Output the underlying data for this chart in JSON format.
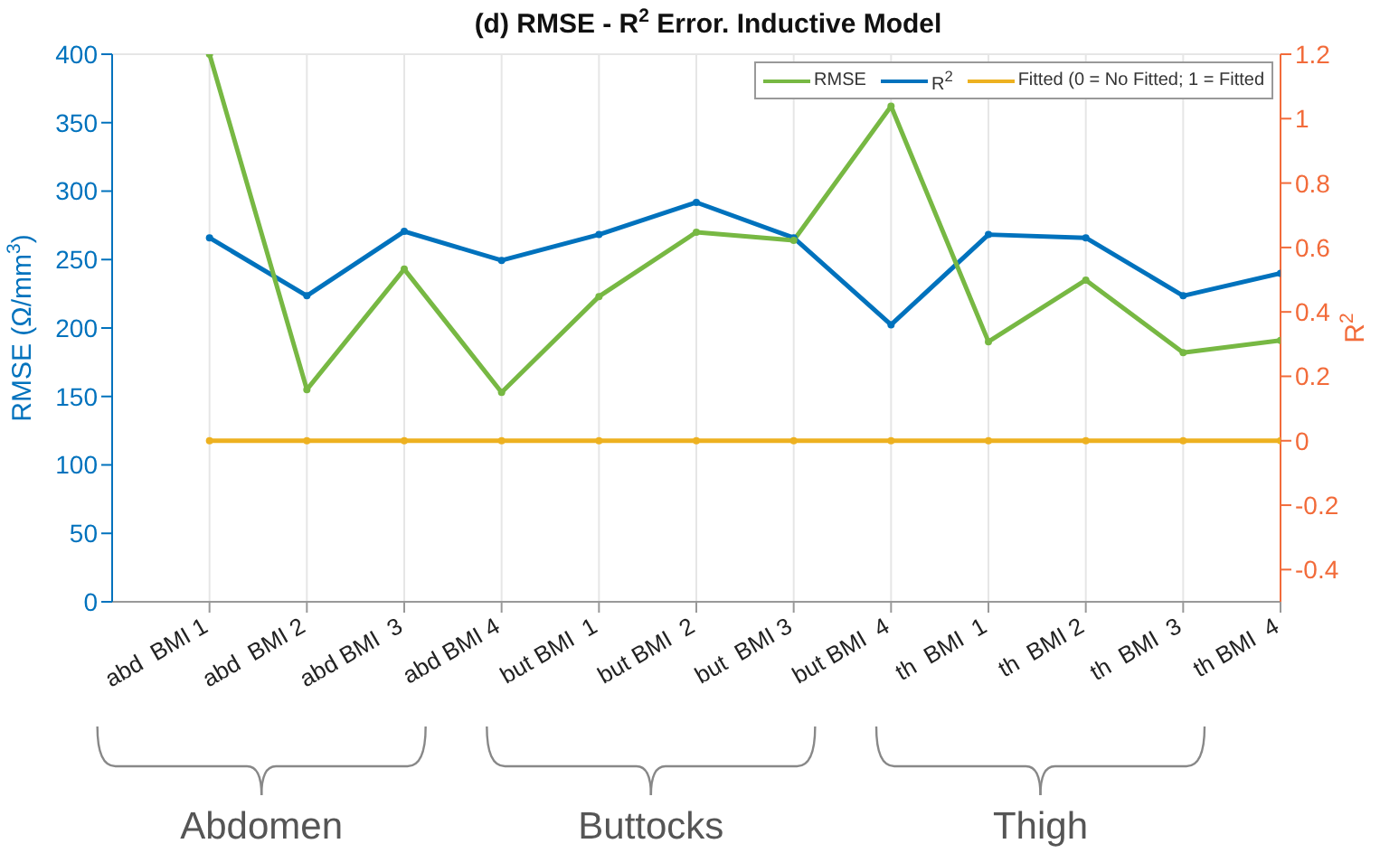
{
  "chart_data": {
    "type": "line",
    "title": "(d) RMSE - R$^{2}$ Error. Inductive Model",
    "ylabel": "RMSE (Ω/mm$^{3}$)",
    "y2label": "R$^{2}$",
    "categories": [
      "abd  BMI 1",
      "abd  BMI 2",
      "abd BMI  3",
      "abd BMI 4",
      "but BMI  1",
      "but BMI  2",
      "but  BMI 3",
      "but BMI  4",
      "th  BMI  1",
      "th  BMI 2",
      "th  BMI  3",
      "th BMI  4"
    ],
    "series": [
      {
        "name": "RMSE",
        "color": "#77b843",
        "values": [
          400,
          155,
          243,
          153,
          223,
          270,
          264,
          362,
          190,
          235,
          182,
          191
        ]
      },
      {
        "name": "R$^{2}$",
        "color": "#0072bd",
        "axis": "y2",
        "values": [
          0.63,
          0.45,
          0.65,
          0.56,
          0.64,
          0.74,
          0.63,
          0.36,
          0.64,
          0.63,
          0.45,
          0.52
        ]
      },
      {
        "name": "Fitted (0 = No Fitted; 1 = Fitted",
        "color": "#edb120",
        "axis": "y2",
        "values": [
          0,
          0,
          0,
          0,
          0,
          0,
          0,
          0,
          0,
          0,
          0,
          0
        ]
      }
    ],
    "ylim": [
      0,
      400
    ],
    "yticks": [
      0,
      50,
      100,
      150,
      200,
      250,
      300,
      350,
      400
    ],
    "y2lim": [
      -0.5,
      1.2
    ],
    "y2ticks": [
      -0.4,
      -0.2,
      0,
      0.2,
      0.4,
      0.6,
      0.8,
      1,
      1.2
    ],
    "grid": true,
    "legend": "top right",
    "marker": "circle",
    "line_style": "solid",
    "annotations": [
      "Abdomen",
      "Buttocks",
      "Thigh"
    ]
  }
}
